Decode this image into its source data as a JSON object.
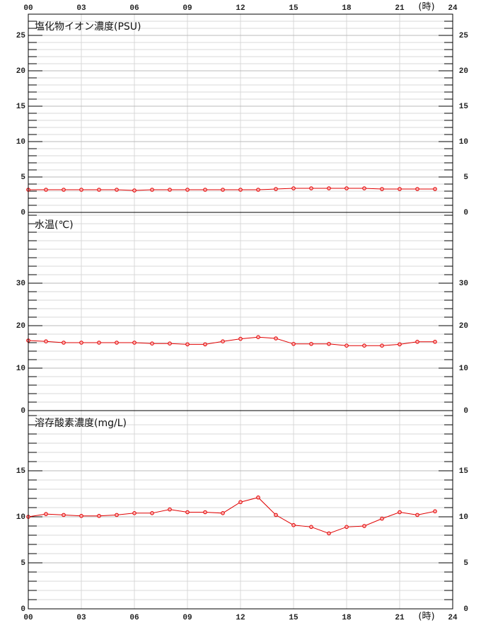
{
  "chart_data": [
    {
      "type": "line",
      "title": "塩化物イオン濃度(PSU)",
      "color": "#e00000",
      "x": [
        0,
        1,
        2,
        3,
        4,
        5,
        6,
        7,
        8,
        9,
        10,
        11,
        12,
        13,
        14,
        15,
        16,
        17,
        18,
        19,
        20,
        21,
        22,
        23
      ],
      "values": [
        3.2,
        3.2,
        3.2,
        3.2,
        3.2,
        3.2,
        3.1,
        3.2,
        3.2,
        3.2,
        3.2,
        3.2,
        3.2,
        3.2,
        3.3,
        3.4,
        3.4,
        3.4,
        3.4,
        3.4,
        3.3,
        3.3,
        3.3,
        3.3
      ],
      "xlim": [
        0,
        24
      ],
      "xticks": [
        {
          "value": 0,
          "label": "00"
        },
        {
          "value": 3,
          "label": "03"
        },
        {
          "value": 6,
          "label": "06"
        },
        {
          "value": 9,
          "label": "09"
        },
        12,
        15,
        18,
        21,
        24
      ],
      "xlabel": "(時)",
      "ylim": [
        0,
        28
      ],
      "yticks": [
        0,
        5,
        10,
        15,
        20,
        25
      ],
      "minor_step": 1,
      "grid": true
    },
    {
      "type": "line",
      "title": "水温(℃)",
      "color": "#e00000",
      "x": [
        0,
        1,
        2,
        3,
        4,
        5,
        6,
        7,
        8,
        9,
        10,
        11,
        12,
        13,
        14,
        15,
        16,
        17,
        18,
        19,
        20,
        21,
        22,
        23
      ],
      "values": [
        16.5,
        16.3,
        16.0,
        16.0,
        16.0,
        16.0,
        16.0,
        15.8,
        15.8,
        15.6,
        15.6,
        16.3,
        16.9,
        17.3,
        17.0,
        15.7,
        15.7,
        15.7,
        15.3,
        15.3,
        15.3,
        15.6,
        16.2,
        16.2
      ],
      "xlim": [
        0,
        24
      ],
      "xticks": [
        {
          "value": 0,
          "label": "00"
        },
        {
          "value": 3,
          "label": "03"
        },
        {
          "value": 6,
          "label": "06"
        },
        {
          "value": 9,
          "label": "09"
        },
        12,
        15,
        18,
        21,
        24
      ],
      "ylim": [
        0,
        46.67
      ],
      "yticks": [
        0,
        10,
        20,
        30
      ],
      "minor_step": 2,
      "grid": true
    },
    {
      "type": "line",
      "title": "溶存酸素濃度(mg/L)",
      "color": "#e00000",
      "x": [
        0,
        1,
        2,
        3,
        4,
        5,
        6,
        7,
        8,
        9,
        10,
        11,
        12,
        13,
        14,
        15,
        16,
        17,
        18,
        19,
        20,
        21,
        22,
        23
      ],
      "values": [
        10.0,
        10.3,
        10.2,
        10.1,
        10.1,
        10.2,
        10.4,
        10.4,
        10.8,
        10.5,
        10.5,
        10.4,
        11.6,
        12.1,
        10.2,
        9.1,
        8.9,
        8.2,
        8.9,
        9.0,
        9.8,
        10.5,
        10.2,
        10.6
      ],
      "xlim": [
        0,
        24
      ],
      "xticks": [
        {
          "value": 0,
          "label": "00"
        },
        {
          "value": 3,
          "label": "03"
        },
        {
          "value": 6,
          "label": "06"
        },
        {
          "value": 9,
          "label": "09"
        },
        12,
        15,
        18,
        21,
        24
      ],
      "xlabel": "(時)",
      "ylim": [
        0,
        21.54
      ],
      "yticks": [
        0,
        5,
        10,
        15
      ],
      "minor_step": 1,
      "grid": true
    }
  ]
}
